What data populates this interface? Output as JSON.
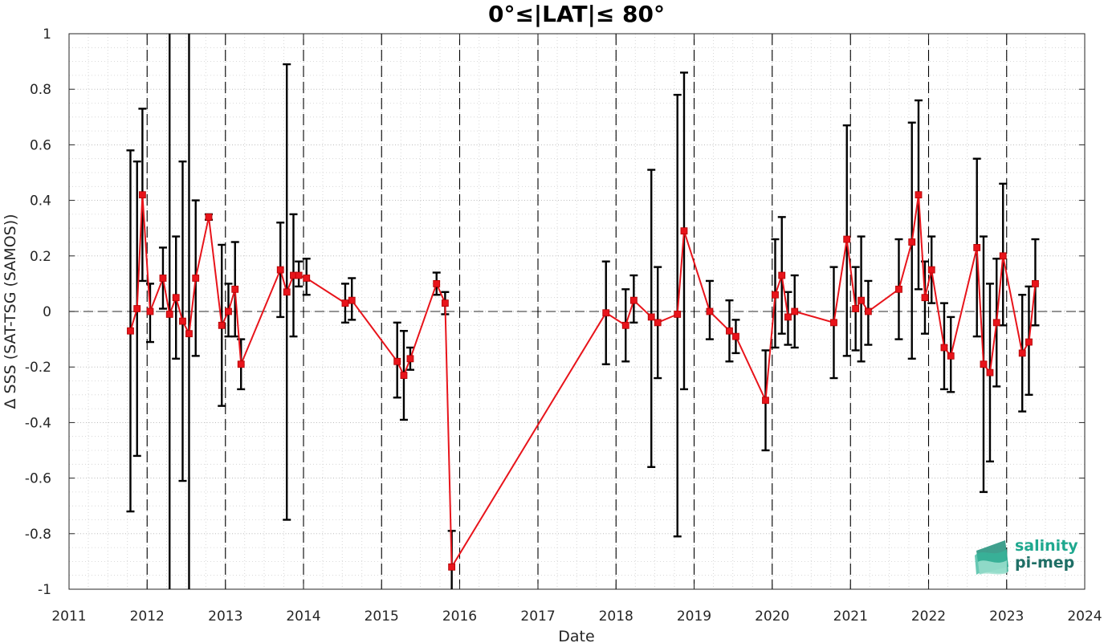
{
  "chart_data": {
    "type": "line",
    "title": "0°≤|LAT|≤ 80°",
    "xlabel": "Date",
    "ylabel": "Δ SSS (SAT-TSG (SAMOS))",
    "xlim": [
      "2011-01-01",
      "2024-01-01"
    ],
    "ylim": [
      -1,
      1
    ],
    "x_tick_labels": [
      "2011",
      "2012",
      "2013",
      "2014",
      "2015",
      "2016",
      "2017",
      "2018",
      "2019",
      "2020",
      "2021",
      "2022",
      "2023",
      "2024"
    ],
    "y_tick_labels": [
      "-1",
      "-0.8",
      "-0.6",
      "-0.4",
      "-0.2",
      "0",
      "0.2",
      "0.4",
      "0.6",
      "0.8",
      "1"
    ],
    "y_tick_values": [
      -1,
      -0.8,
      -0.6,
      -0.4,
      -0.2,
      0,
      0.2,
      0.4,
      0.6,
      0.8,
      1
    ],
    "grid": "minor dotted grid",
    "reference_line": 0,
    "year_boundary_dashed_lines": true,
    "series": [
      {
        "color": "#e8141b",
        "errorbar_color": "#000000",
        "marker": "square",
        "points": [
          {
            "x": "2011-10-15",
            "y": -0.07,
            "low": -0.72,
            "high": 0.58
          },
          {
            "x": "2011-11-15",
            "y": 0.01,
            "low": -0.52,
            "high": 0.54
          },
          {
            "x": "2011-12-10",
            "y": 0.42,
            "low": 0.11,
            "high": 0.73
          },
          {
            "x": "2012-01-15",
            "y": 0.0,
            "low": -0.11,
            "high": 0.1
          },
          {
            "x": "2012-03-15",
            "y": 0.12,
            "low": 0.01,
            "high": 0.23
          },
          {
            "x": "2012-04-15",
            "y": -0.01,
            "low": -1.25,
            "high": 1.25
          },
          {
            "x": "2012-05-15",
            "y": 0.05,
            "low": -0.17,
            "high": 0.27
          },
          {
            "x": "2012-06-15",
            "y": -0.035,
            "low": -0.61,
            "high": 0.54
          },
          {
            "x": "2012-07-15",
            "y": -0.08,
            "low": -1.25,
            "high": 1.25
          },
          {
            "x": "2012-08-15",
            "y": 0.12,
            "low": -0.16,
            "high": 0.4
          },
          {
            "x": "2012-10-15",
            "y": 0.34,
            "low": 0.33,
            "high": 0.35
          },
          {
            "x": "2012-12-15",
            "y": -0.05,
            "low": -0.34,
            "high": 0.24
          },
          {
            "x": "2013-01-15",
            "y": 0.0,
            "low": -0.09,
            "high": 0.1
          },
          {
            "x": "2013-02-15",
            "y": 0.08,
            "low": -0.09,
            "high": 0.25
          },
          {
            "x": "2013-03-15",
            "y": -0.19,
            "low": -0.28,
            "high": -0.1
          },
          {
            "x": "2013-09-15",
            "y": 0.15,
            "low": -0.02,
            "high": 0.32
          },
          {
            "x": "2013-10-15",
            "y": 0.07,
            "low": -0.75,
            "high": 0.89
          },
          {
            "x": "2013-11-15",
            "y": 0.13,
            "low": -0.09,
            "high": 0.35
          },
          {
            "x": "2013-12-10",
            "y": 0.13,
            "low": 0.09,
            "high": 0.18
          },
          {
            "x": "2014-01-15",
            "y": 0.12,
            "low": 0.06,
            "high": 0.19
          },
          {
            "x": "2014-07-15",
            "y": 0.03,
            "low": -0.04,
            "high": 0.1
          },
          {
            "x": "2014-08-15",
            "y": 0.04,
            "low": -0.03,
            "high": 0.12
          },
          {
            "x": "2015-03-15",
            "y": -0.18,
            "low": -0.31,
            "high": -0.04
          },
          {
            "x": "2015-04-15",
            "y": -0.23,
            "low": -0.39,
            "high": -0.07
          },
          {
            "x": "2015-05-15",
            "y": -0.17,
            "low": -0.21,
            "high": -0.13
          },
          {
            "x": "2015-09-15",
            "y": 0.1,
            "low": 0.06,
            "high": 0.14
          },
          {
            "x": "2015-10-25",
            "y": 0.03,
            "low": -0.01,
            "high": 0.07
          },
          {
            "x": "2015-11-25",
            "y": -0.92,
            "low": -1.05,
            "high": -0.79
          },
          {
            "x": "2017-11-15",
            "y": -0.005,
            "low": -0.19,
            "high": 0.18
          },
          {
            "x": "2018-02-15",
            "y": -0.05,
            "low": -0.18,
            "high": 0.08
          },
          {
            "x": "2018-03-25",
            "y": 0.04,
            "low": -0.04,
            "high": 0.13
          },
          {
            "x": "2018-06-15",
            "y": -0.02,
            "low": -0.56,
            "high": 0.51
          },
          {
            "x": "2018-07-15",
            "y": -0.04,
            "low": -0.24,
            "high": 0.16
          },
          {
            "x": "2018-10-15",
            "y": -0.01,
            "low": -0.81,
            "high": 0.78
          },
          {
            "x": "2018-11-15",
            "y": 0.29,
            "low": -0.28,
            "high": 0.86
          },
          {
            "x": "2019-03-15",
            "y": 0.0,
            "low": -0.1,
            "high": 0.11
          },
          {
            "x": "2019-06-15",
            "y": -0.07,
            "low": -0.18,
            "high": 0.04
          },
          {
            "x": "2019-07-15",
            "y": -0.09,
            "low": -0.15,
            "high": -0.03
          },
          {
            "x": "2019-12-01",
            "y": -0.32,
            "low": -0.5,
            "high": -0.14
          },
          {
            "x": "2020-01-15",
            "y": 0.06,
            "low": -0.13,
            "high": 0.26
          },
          {
            "x": "2020-02-15",
            "y": 0.13,
            "low": -0.08,
            "high": 0.34
          },
          {
            "x": "2020-03-15",
            "y": -0.02,
            "low": -0.12,
            "high": 0.07
          },
          {
            "x": "2020-04-15",
            "y": 0.0,
            "low": -0.13,
            "high": 0.13
          },
          {
            "x": "2020-10-15",
            "y": -0.04,
            "low": -0.24,
            "high": 0.16
          },
          {
            "x": "2020-12-15",
            "y": 0.26,
            "low": -0.16,
            "high": 0.67
          },
          {
            "x": "2021-01-25",
            "y": 0.01,
            "low": -0.14,
            "high": 0.16
          },
          {
            "x": "2021-02-20",
            "y": 0.04,
            "low": -0.18,
            "high": 0.27
          },
          {
            "x": "2021-03-25",
            "y": 0.0,
            "low": -0.12,
            "high": 0.11
          },
          {
            "x": "2021-08-15",
            "y": 0.08,
            "low": -0.1,
            "high": 0.26
          },
          {
            "x": "2021-10-15",
            "y": 0.25,
            "low": -0.17,
            "high": 0.68
          },
          {
            "x": "2021-11-15",
            "y": 0.42,
            "low": 0.08,
            "high": 0.76
          },
          {
            "x": "2021-12-15",
            "y": 0.05,
            "low": -0.08,
            "high": 0.18
          },
          {
            "x": "2022-01-15",
            "y": 0.15,
            "low": 0.03,
            "high": 0.27
          },
          {
            "x": "2022-03-15",
            "y": -0.13,
            "low": -0.28,
            "high": 0.03
          },
          {
            "x": "2022-04-15",
            "y": -0.16,
            "low": -0.29,
            "high": -0.02
          },
          {
            "x": "2022-08-15",
            "y": 0.23,
            "low": -0.09,
            "high": 0.55
          },
          {
            "x": "2022-09-15",
            "y": -0.19,
            "low": -0.65,
            "high": 0.27
          },
          {
            "x": "2022-10-15",
            "y": -0.22,
            "low": -0.54,
            "high": 0.1
          },
          {
            "x": "2022-11-15",
            "y": -0.04,
            "low": -0.27,
            "high": 0.19
          },
          {
            "x": "2022-12-15",
            "y": 0.2,
            "low": -0.05,
            "high": 0.46
          },
          {
            "x": "2023-03-15",
            "y": -0.15,
            "low": -0.36,
            "high": 0.06
          },
          {
            "x": "2023-04-15",
            "y": -0.11,
            "low": -0.3,
            "high": 0.09
          },
          {
            "x": "2023-05-15",
            "y": 0.1,
            "low": -0.05,
            "high": 0.26
          }
        ]
      }
    ]
  },
  "logo": {
    "line1": "salinity",
    "line2": "pi-mep",
    "color": "#1fa88f"
  }
}
